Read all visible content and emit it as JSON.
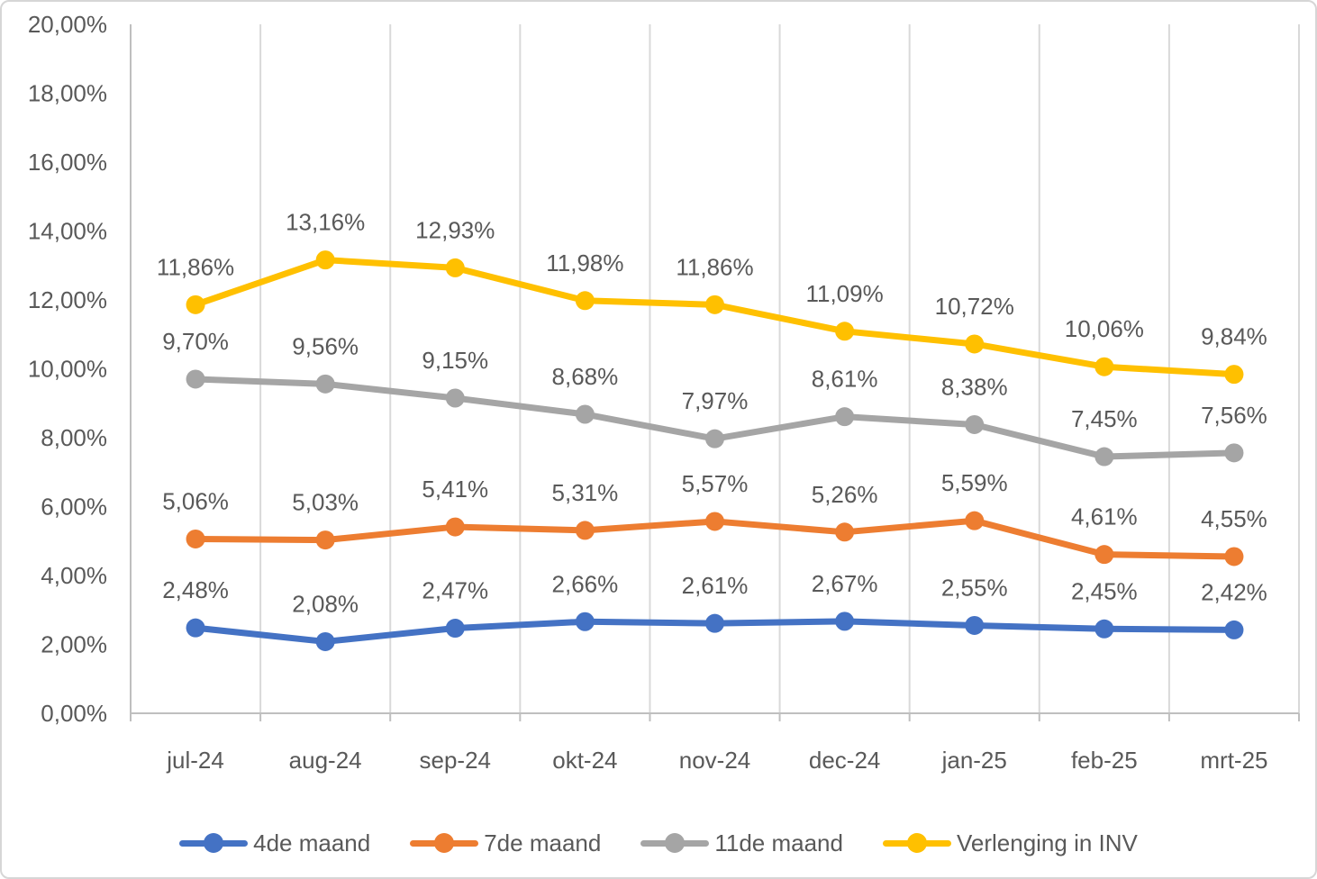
{
  "chart_data": {
    "type": "line",
    "title": "",
    "categories": [
      "jul-24",
      "aug-24",
      "sep-24",
      "okt-24",
      "nov-24",
      "dec-24",
      "jan-25",
      "feb-25",
      "mrt-25"
    ],
    "series": [
      {
        "name": "4de maand",
        "color": "#4472C4",
        "values": [
          2.48,
          2.08,
          2.47,
          2.66,
          2.61,
          2.67,
          2.55,
          2.45,
          2.42
        ],
        "labels": [
          "2,48%",
          "2,08%",
          "2,47%",
          "2,66%",
          "2,61%",
          "2,67%",
          "2,55%",
          "2,45%",
          "2,42%"
        ]
      },
      {
        "name": "7de maand",
        "color": "#ED7D31",
        "values": [
          5.06,
          5.03,
          5.41,
          5.31,
          5.57,
          5.26,
          5.59,
          4.61,
          4.55
        ],
        "labels": [
          "5,06%",
          "5,03%",
          "5,41%",
          "5,31%",
          "5,57%",
          "5,26%",
          "5,59%",
          "4,61%",
          "4,55%"
        ]
      },
      {
        "name": "11de maand",
        "color": "#A5A5A5",
        "values": [
          9.7,
          9.56,
          9.15,
          8.68,
          7.97,
          8.61,
          8.38,
          7.45,
          7.56
        ],
        "labels": [
          "9,70%",
          "9,56%",
          "9,15%",
          "8,68%",
          "7,97%",
          "8,61%",
          "8,38%",
          "7,45%",
          "7,56%"
        ]
      },
      {
        "name": "Verlenging in INV",
        "color": "#FFC000",
        "values": [
          11.86,
          13.16,
          12.93,
          11.98,
          11.86,
          11.09,
          10.72,
          10.06,
          9.84
        ],
        "labels": [
          "11,86%",
          "13,16%",
          "12,93%",
          "11,98%",
          "11,86%",
          "11,09%",
          "10,72%",
          "10,06%",
          "9,84%"
        ]
      }
    ],
    "y_axis": {
      "min": 0,
      "max": 20,
      "step": 2,
      "tick_labels": [
        "0,00%",
        "2,00%",
        "4,00%",
        "6,00%",
        "8,00%",
        "10,00%",
        "12,00%",
        "14,00%",
        "16,00%",
        "18,00%",
        "20,00%"
      ]
    },
    "x_axis": {
      "type": "category",
      "tick_labels": [
        "jul-24",
        "aug-24",
        "sep-24",
        "okt-24",
        "nov-24",
        "dec-24",
        "jan-25",
        "feb-25",
        "mrt-25"
      ]
    },
    "legend": {
      "position": "bottom",
      "entries": [
        "4de maand",
        "7de maand",
        "11de maand",
        "Verlenging in INV"
      ]
    },
    "grid": {
      "vertical": true,
      "horizontal": false
    },
    "style": {
      "text_color": "#595959",
      "gridline_color": "#D9D9D9",
      "axis_color": "#BFBFBF",
      "background": "#FFFFFF",
      "border_color": "#D6D6D6"
    }
  }
}
